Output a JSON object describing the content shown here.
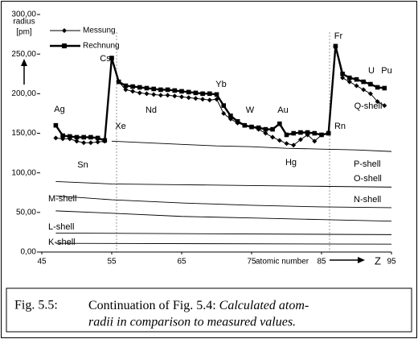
{
  "chart_data": {
    "type": "line",
    "y_label": [
      "radius",
      "[pm]"
    ],
    "x_label": "atomic number",
    "x_symbol": "Z",
    "xlim": [
      45,
      95
    ],
    "xticks": [
      45,
      55,
      65,
      75,
      85,
      95
    ],
    "ylim": [
      0,
      300
    ],
    "yticks": [
      {
        "value": 0,
        "label": "0,00"
      },
      {
        "value": 50,
        "label": "50,00"
      },
      {
        "value": 100,
        "label": "100,00"
      },
      {
        "value": 150,
        "label": "150,00"
      },
      {
        "value": 200,
        "label": "200,00"
      },
      {
        "value": 250,
        "label": "250,00"
      },
      {
        "value": 300,
        "label": "300,00"
      }
    ],
    "x": [
      47,
      48,
      49,
      50,
      51,
      52,
      53,
      54,
      55,
      56,
      57,
      58,
      59,
      60,
      61,
      62,
      63,
      64,
      65,
      66,
      67,
      68,
      69,
      70,
      71,
      72,
      73,
      74,
      75,
      76,
      77,
      78,
      79,
      80,
      81,
      82,
      83,
      84,
      85,
      86,
      87,
      88,
      89,
      90,
      91,
      92,
      93,
      94
    ],
    "series": [
      {
        "name": "Messung",
        "color": "#000000",
        "marker": "diamond",
        "values": [
          144,
          143,
          143,
          140,
          138,
          138,
          139,
          140,
          245,
          215,
          205,
          203,
          201,
          200,
          199,
          198,
          198,
          197,
          196,
          195,
          194,
          193,
          192,
          193,
          175,
          168,
          163,
          160,
          158,
          155,
          150,
          145,
          141,
          137,
          135,
          142,
          148,
          140,
          148,
          150,
          260,
          220,
          215,
          210,
          205,
          200,
          190,
          185
        ]
      },
      {
        "name": "Rechnung",
        "color": "#000000",
        "marker": "square",
        "values": [
          160,
          147,
          146,
          145,
          145,
          145,
          144,
          141,
          245,
          215,
          210,
          209,
          208,
          207,
          206,
          205,
          205,
          204,
          203,
          202,
          201,
          200,
          200,
          199,
          185,
          172,
          165,
          160,
          158,
          157,
          155,
          155,
          162,
          148,
          150,
          151,
          151,
          150,
          148,
          150,
          260,
          225,
          220,
          218,
          215,
          212,
          208,
          207
        ]
      }
    ],
    "shells": [
      {
        "label": "P-shell",
        "x": [
          55,
          60,
          65,
          70,
          75,
          80,
          85,
          90,
          95
        ],
        "values": [
          140,
          138,
          136,
          134,
          133,
          131,
          130,
          129,
          127
        ]
      },
      {
        "label": "O-shell",
        "x": [
          47,
          55,
          65,
          75,
          85,
          95
        ],
        "values": [
          89,
          86,
          85,
          84,
          83,
          82
        ]
      },
      {
        "label": "N-shell",
        "x": [
          47,
          55,
          65,
          75,
          85,
          95
        ],
        "values": [
          71,
          66,
          62,
          59,
          57,
          56
        ]
      },
      {
        "label": "M-shell",
        "x": [
          47,
          55,
          65,
          75,
          85,
          95
        ],
        "values": [
          52,
          49,
          45,
          43,
          41,
          39
        ]
      },
      {
        "label": "L-shell",
        "x": [
          47,
          95
        ],
        "values": [
          24,
          22
        ]
      },
      {
        "label": "K-shell",
        "x": [
          47,
          95
        ],
        "values": [
          11,
          10
        ]
      }
    ],
    "annotations": [
      "Ag",
      "Sn",
      "Cs",
      "Xe",
      "Nd",
      "Yb",
      "W",
      "Au",
      "Hg",
      "Fr",
      "Rn",
      "U",
      "Pu",
      "Q-shell"
    ]
  },
  "caption": {
    "label": "Fig. 5.5:",
    "text": "Continuation of Fig. 5.4:",
    "italic_lines": [
      "Calculated atom-",
      "radii in comparison to measured values."
    ]
  }
}
